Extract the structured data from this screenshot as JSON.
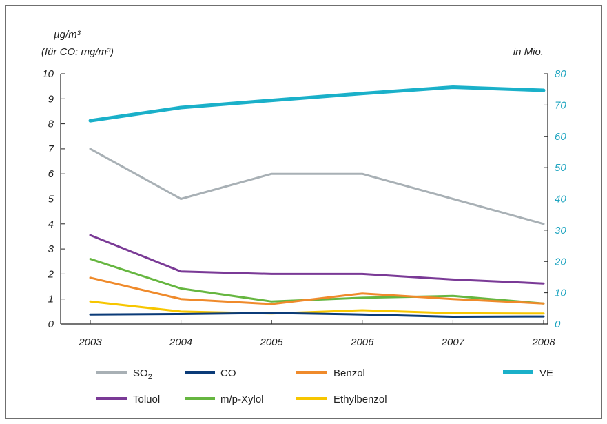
{
  "chart_data": {
    "type": "line",
    "left_axis": {
      "unit_line1": "µg/m³",
      "unit_line2": "(für CO: mg/m³)",
      "ylim": [
        0,
        10
      ],
      "ticks": [
        "0",
        "1",
        "2",
        "3",
        "4",
        "5",
        "6",
        "7",
        "8",
        "9",
        "10"
      ]
    },
    "right_axis": {
      "unit": "in Mio.",
      "ylim": [
        0,
        80
      ],
      "ticks": [
        "0",
        "10",
        "20",
        "30",
        "40",
        "50",
        "60",
        "70",
        "80"
      ]
    },
    "categories": [
      "2003",
      "2004",
      "2005",
      "2006",
      "2007",
      "2008"
    ],
    "series": [
      {
        "name": "SO2",
        "axis": "left",
        "color": "#a8b0b5",
        "values": [
          7.0,
          5.0,
          6.0,
          6.0,
          5.0,
          4.0
        ]
      },
      {
        "name": "CO",
        "axis": "left",
        "color": "#0b3b78",
        "values": [
          0.38,
          0.4,
          0.44,
          0.38,
          0.29,
          0.3
        ]
      },
      {
        "name": "Benzol",
        "axis": "left",
        "color": "#ef8a2b",
        "values": [
          1.85,
          1.0,
          0.8,
          1.22,
          1.0,
          0.82
        ]
      },
      {
        "name": "VE",
        "axis": "right",
        "color": "#1ab0c9",
        "values": [
          65,
          69.2,
          71.5,
          73.7,
          75.7,
          74.7
        ]
      },
      {
        "name": "Toluol",
        "axis": "left",
        "color": "#7a3a96",
        "values": [
          3.55,
          2.1,
          2.0,
          2.0,
          1.78,
          1.62
        ]
      },
      {
        "name": "m/p-Xylol",
        "axis": "left",
        "color": "#66b640",
        "values": [
          2.6,
          1.42,
          0.9,
          1.05,
          1.12,
          0.82
        ]
      },
      {
        "name": "Ethylbenzol",
        "axis": "left",
        "color": "#f7c600",
        "values": [
          0.9,
          0.5,
          0.42,
          0.55,
          0.43,
          0.42
        ]
      }
    ]
  },
  "legend": {
    "SO2_main": "SO",
    "SO2_sub": "2",
    "CO": "CO",
    "Benzol": "Benzol",
    "VE": "VE",
    "Toluol": "Toluol",
    "Xylol": "m/p-Xylol",
    "Ethylbenzol": "Ethylbenzol"
  }
}
